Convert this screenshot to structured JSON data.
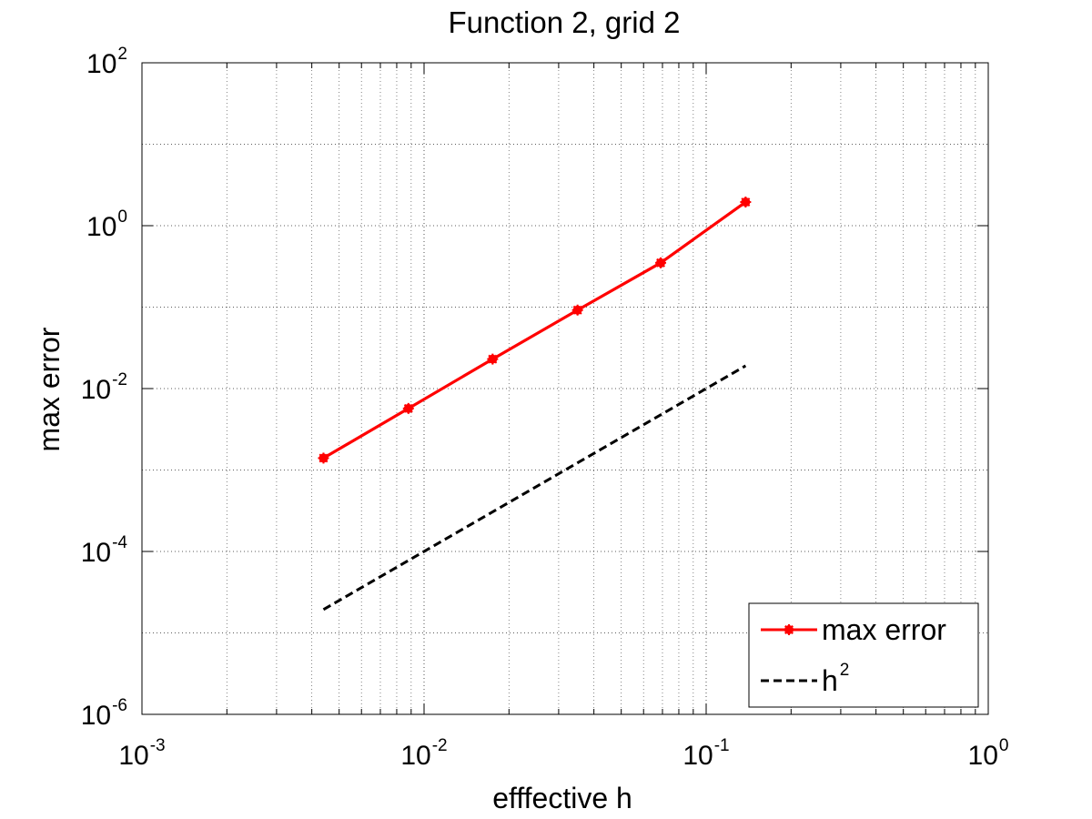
{
  "chart_data": {
    "type": "line",
    "title": "Function 2, grid 2",
    "xlabel": "efffective h",
    "ylabel": "max error",
    "x_scale": "log",
    "y_scale": "log",
    "xlim": [
      0.001,
      1
    ],
    "ylim": [
      1e-06,
      100
    ],
    "grid": true,
    "x_ticks": [
      {
        "base": "10",
        "exp": "-3",
        "value": 0.001
      },
      {
        "base": "10",
        "exp": "-2",
        "value": 0.01
      },
      {
        "base": "10",
        "exp": "-1",
        "value": 0.1
      },
      {
        "base": "10",
        "exp": "0",
        "value": 1
      }
    ],
    "y_ticks": [
      {
        "base": "10",
        "exp": "-6",
        "value": 1e-06
      },
      {
        "base": "10",
        "exp": "-4",
        "value": 0.0001
      },
      {
        "base": "10",
        "exp": "-2",
        "value": 0.01
      },
      {
        "base": "10",
        "exp": "0",
        "value": 1
      },
      {
        "base": "10",
        "exp": "2",
        "value": 100
      }
    ],
    "legend_position": "bottom-right",
    "series": [
      {
        "name": "max error",
        "label_base": "max error",
        "label_exp": "",
        "color": "#ff0000",
        "style": "solid",
        "marker": "star",
        "x": [
          0.0044,
          0.0088,
          0.0175,
          0.035,
          0.069,
          0.138
        ],
        "y": [
          0.0014,
          0.0057,
          0.023,
          0.092,
          0.35,
          1.95
        ]
      },
      {
        "name": "h^2",
        "label_base": "h",
        "label_exp": "2",
        "color": "#000000",
        "style": "dashed",
        "marker": "none",
        "x": [
          0.0044,
          0.138
        ],
        "y": [
          1.936e-05,
          0.019044
        ]
      }
    ]
  }
}
